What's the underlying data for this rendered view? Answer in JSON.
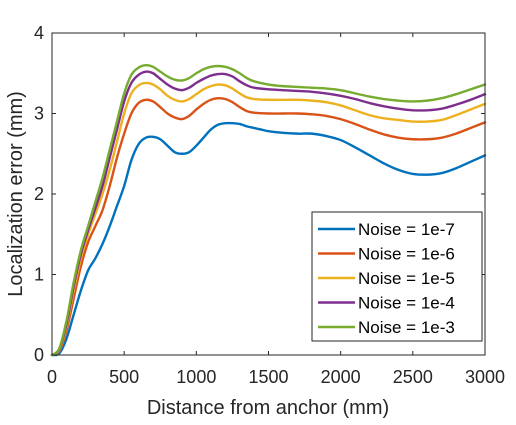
{
  "chart_data": {
    "type": "line",
    "title": "",
    "xlabel": "Distance from anchor (mm)",
    "ylabel": "Localization error (mm)",
    "xlim": [
      0,
      3000
    ],
    "ylim": [
      0,
      4
    ],
    "xticks": [
      "0",
      "500",
      "1000",
      "1500",
      "2000",
      "2500",
      "3000"
    ],
    "yticks": [
      "0",
      "1",
      "2",
      "3",
      "4"
    ],
    "grid": false,
    "legend_position": "bottom-right",
    "series": [
      {
        "name": "Noise = 1e-7",
        "color": "#0072BD",
        "x": [
          0,
          50,
          100,
          150,
          200,
          250,
          300,
          350,
          400,
          450,
          500,
          550,
          600,
          650,
          700,
          750,
          800,
          850,
          900,
          950,
          1000,
          1050,
          1100,
          1150,
          1200,
          1250,
          1300,
          1350,
          1400,
          1450,
          1500,
          1600,
          1700,
          1800,
          1900,
          2000,
          2100,
          2200,
          2300,
          2400,
          2500,
          2600,
          2700,
          2800,
          2900,
          3000
        ],
        "y": [
          0.0,
          0.02,
          0.2,
          0.5,
          0.8,
          1.05,
          1.2,
          1.38,
          1.6,
          1.85,
          2.1,
          2.42,
          2.62,
          2.7,
          2.71,
          2.68,
          2.6,
          2.52,
          2.5,
          2.52,
          2.6,
          2.7,
          2.8,
          2.86,
          2.88,
          2.88,
          2.87,
          2.84,
          2.82,
          2.8,
          2.78,
          2.76,
          2.75,
          2.75,
          2.72,
          2.67,
          2.58,
          2.48,
          2.38,
          2.3,
          2.25,
          2.24,
          2.26,
          2.32,
          2.4,
          2.48
        ]
      },
      {
        "name": "Noise = 1e-6",
        "color": "#D95319",
        "x": [
          0,
          50,
          100,
          150,
          200,
          250,
          300,
          350,
          400,
          450,
          500,
          550,
          600,
          650,
          700,
          750,
          800,
          850,
          900,
          950,
          1000,
          1050,
          1100,
          1150,
          1200,
          1250,
          1300,
          1350,
          1400,
          1500,
          1600,
          1700,
          1800,
          1900,
          2000,
          2100,
          2200,
          2300,
          2400,
          2500,
          2600,
          2700,
          2800,
          2900,
          3000
        ],
        "y": [
          0.0,
          0.05,
          0.3,
          0.7,
          1.1,
          1.4,
          1.6,
          1.8,
          2.1,
          2.45,
          2.75,
          3.0,
          3.13,
          3.17,
          3.15,
          3.08,
          3.0,
          2.95,
          2.93,
          2.97,
          3.05,
          3.12,
          3.17,
          3.19,
          3.18,
          3.14,
          3.08,
          3.03,
          3.01,
          3.0,
          3.0,
          3.0,
          2.99,
          2.97,
          2.93,
          2.87,
          2.8,
          2.74,
          2.7,
          2.68,
          2.68,
          2.7,
          2.75,
          2.82,
          2.89
        ]
      },
      {
        "name": "Noise = 1e-5",
        "color": "#EDB120",
        "x": [
          0,
          50,
          100,
          150,
          200,
          250,
          300,
          350,
          400,
          450,
          500,
          550,
          600,
          650,
          700,
          750,
          800,
          850,
          900,
          950,
          1000,
          1050,
          1100,
          1150,
          1200,
          1250,
          1300,
          1350,
          1400,
          1500,
          1600,
          1700,
          1800,
          1900,
          2000,
          2100,
          2200,
          2300,
          2400,
          2500,
          2600,
          2700,
          2800,
          2900,
          3000
        ],
        "y": [
          0.0,
          0.06,
          0.35,
          0.8,
          1.2,
          1.5,
          1.75,
          2.0,
          2.3,
          2.65,
          3.0,
          3.25,
          3.35,
          3.38,
          3.36,
          3.3,
          3.22,
          3.17,
          3.15,
          3.18,
          3.24,
          3.3,
          3.34,
          3.36,
          3.35,
          3.31,
          3.25,
          3.2,
          3.18,
          3.17,
          3.17,
          3.17,
          3.16,
          3.14,
          3.1,
          3.04,
          2.98,
          2.94,
          2.92,
          2.9,
          2.9,
          2.92,
          2.98,
          3.05,
          3.12
        ]
      },
      {
        "name": "Noise = 1e-4",
        "color": "#7E2F8E",
        "x": [
          0,
          50,
          100,
          150,
          200,
          250,
          300,
          350,
          400,
          450,
          500,
          550,
          600,
          650,
          700,
          750,
          800,
          850,
          900,
          950,
          1000,
          1050,
          1100,
          1150,
          1200,
          1250,
          1300,
          1350,
          1400,
          1500,
          1600,
          1700,
          1800,
          1900,
          2000,
          2100,
          2200,
          2300,
          2400,
          2500,
          2600,
          2700,
          2800,
          2900,
          3000
        ],
        "y": [
          0.0,
          0.07,
          0.38,
          0.85,
          1.25,
          1.55,
          1.82,
          2.1,
          2.45,
          2.8,
          3.15,
          3.38,
          3.48,
          3.52,
          3.5,
          3.43,
          3.36,
          3.31,
          3.29,
          3.32,
          3.38,
          3.43,
          3.47,
          3.49,
          3.49,
          3.46,
          3.4,
          3.35,
          3.32,
          3.3,
          3.29,
          3.28,
          3.27,
          3.25,
          3.22,
          3.18,
          3.13,
          3.09,
          3.06,
          3.04,
          3.04,
          3.06,
          3.11,
          3.17,
          3.24
        ]
      },
      {
        "name": "Noise = 1e-3",
        "color": "#77AC30",
        "x": [
          0,
          50,
          100,
          150,
          200,
          250,
          300,
          350,
          400,
          450,
          500,
          550,
          600,
          650,
          700,
          750,
          800,
          850,
          900,
          950,
          1000,
          1050,
          1100,
          1150,
          1200,
          1250,
          1300,
          1350,
          1400,
          1500,
          1600,
          1700,
          1800,
          1900,
          2000,
          2100,
          2200,
          2300,
          2400,
          2500,
          2600,
          2700,
          2800,
          2900,
          3000
        ],
        "y": [
          0.0,
          0.08,
          0.42,
          0.9,
          1.3,
          1.6,
          1.9,
          2.2,
          2.55,
          2.9,
          3.25,
          3.48,
          3.57,
          3.6,
          3.58,
          3.52,
          3.46,
          3.42,
          3.41,
          3.44,
          3.5,
          3.55,
          3.58,
          3.59,
          3.58,
          3.55,
          3.5,
          3.44,
          3.4,
          3.36,
          3.34,
          3.33,
          3.32,
          3.31,
          3.29,
          3.25,
          3.21,
          3.18,
          3.16,
          3.15,
          3.16,
          3.19,
          3.24,
          3.3,
          3.36
        ]
      }
    ]
  }
}
